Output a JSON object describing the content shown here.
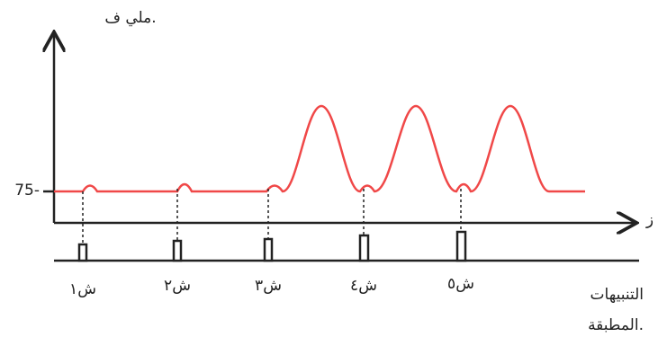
{
  "y_axis_label": "ملي ف.",
  "x_axis_label": "ز",
  "y_tick": "75-",
  "stimuli": [
    "ش١",
    "ش٢",
    "ش٣",
    "ش٤",
    "ش٥"
  ],
  "caption": [
    "التنبيهات",
    "المطبقة."
  ]
}
